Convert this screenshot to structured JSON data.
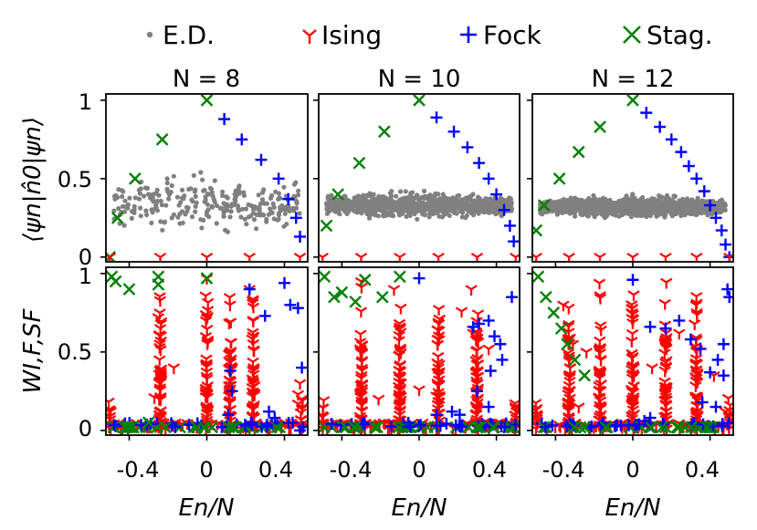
{
  "figure": {
    "legend": [
      {
        "label": "E.D.",
        "marker": "dot",
        "color": "#808080"
      },
      {
        "label": "Ising",
        "marker": "tri_down",
        "color": "#ff0000"
      },
      {
        "label": "Fock",
        "marker": "plus",
        "color": "#0000ff"
      },
      {
        "label": "Stag.",
        "marker": "x",
        "color": "#008000"
      }
    ],
    "column_titles": [
      "N = 8",
      "N = 10",
      "N = 12"
    ],
    "ylabel_top": "⟨ψn|n̂0|ψn⟩",
    "ylabel_bottom": "WI,F,SF",
    "xlabel": "En/N",
    "xtick_labels": [
      "-0.4",
      "0",
      "0.4"
    ],
    "ytick_labels": [
      "0",
      "0.5",
      "1"
    ]
  },
  "chart_data": [
    {
      "type": "scatter",
      "panel": "top",
      "title": "N = 8",
      "ylabel": "⟨ψn|n̂0|ψn⟩",
      "xlim": [
        -0.52,
        0.52
      ],
      "ylim": [
        -0.03,
        1.04
      ],
      "series": [
        {
          "name": "Stag.",
          "x": [
            -0.5,
            -0.46,
            -0.37,
            -0.23,
            0.0
          ],
          "y": [
            0.0,
            0.25,
            0.5,
            0.75,
            1.0
          ]
        },
        {
          "name": "Fock",
          "x": [
            0.09,
            0.18,
            0.28,
            0.37,
            0.42,
            0.46,
            0.48
          ],
          "y": [
            0.88,
            0.75,
            0.62,
            0.5,
            0.37,
            0.25,
            0.13
          ]
        },
        {
          "name": "Ising",
          "x": [
            -0.5,
            -0.24,
            0.0,
            0.22,
            0.48
          ],
          "y": [
            0.0,
            0.0,
            0.0,
            0.0,
            0.0
          ]
        },
        {
          "name": "E.D.",
          "cloud": {
            "n": 260,
            "x_range": [
              -0.48,
              0.48
            ],
            "y_center": 0.34,
            "y_spread": 0.3
          }
        }
      ]
    },
    {
      "type": "scatter",
      "panel": "top",
      "title": "N = 10",
      "xlim": [
        -0.52,
        0.52
      ],
      "ylim": [
        -0.03,
        1.04
      ],
      "series": [
        {
          "name": "Stag.",
          "x": [
            -0.48,
            -0.42,
            -0.31,
            -0.18,
            0.0
          ],
          "y": [
            0.2,
            0.4,
            0.6,
            0.8,
            1.0
          ]
        },
        {
          "name": "Fock",
          "x": [
            0.09,
            0.18,
            0.25,
            0.31,
            0.36,
            0.4,
            0.44,
            0.47,
            0.49
          ],
          "y": [
            0.89,
            0.8,
            0.7,
            0.6,
            0.5,
            0.4,
            0.3,
            0.2,
            0.1
          ]
        },
        {
          "name": "Ising",
          "x": [
            -0.5,
            -0.3,
            -0.1,
            0.1,
            0.3,
            0.5
          ],
          "y": [
            0.0,
            0.0,
            0.0,
            0.0,
            0.0,
            0.0
          ]
        },
        {
          "name": "E.D.",
          "cloud": {
            "n": 900,
            "x_range": [
              -0.48,
              0.48
            ],
            "y_center": 0.33,
            "y_spread": 0.13
          }
        }
      ]
    },
    {
      "type": "scatter",
      "panel": "top",
      "title": "N = 12",
      "xlim": [
        -0.52,
        0.52
      ],
      "ylim": [
        -0.03,
        1.04
      ],
      "series": [
        {
          "name": "Stag.",
          "x": [
            -0.5,
            -0.46,
            -0.38,
            -0.28,
            -0.17,
            0.0
          ],
          "y": [
            0.17,
            0.33,
            0.5,
            0.67,
            0.83,
            1.0
          ]
        },
        {
          "name": "Fock",
          "x": [
            0.07,
            0.14,
            0.2,
            0.25,
            0.29,
            0.33,
            0.37,
            0.4,
            0.43,
            0.46,
            0.48,
            0.5
          ],
          "y": [
            0.92,
            0.83,
            0.75,
            0.67,
            0.58,
            0.5,
            0.42,
            0.33,
            0.25,
            0.17,
            0.08,
            0.0
          ]
        },
        {
          "name": "Ising",
          "x": [
            -0.5,
            -0.33,
            -0.17,
            0.0,
            0.17,
            0.33,
            0.5
          ],
          "y": [
            0.0,
            0.0,
            0.0,
            0.0,
            0.0,
            0.0,
            0.0
          ]
        },
        {
          "name": "E.D.",
          "cloud": {
            "n": 1400,
            "x_range": [
              -0.48,
              0.48
            ],
            "y_center": 0.32,
            "y_spread": 0.1
          }
        }
      ]
    },
    {
      "type": "scatter",
      "panel": "bottom",
      "ylabel": "WI,F,SF",
      "xlabel": "En/N",
      "xlim": [
        -0.52,
        0.52
      ],
      "ylim": [
        -0.03,
        1.04
      ],
      "series": [
        {
          "name": "Stag.",
          "x": [
            -0.49,
            -0.47,
            -0.4,
            -0.25,
            -0.25,
            0.0,
            -0.3
          ],
          "y": [
            0.98,
            0.95,
            0.9,
            0.98,
            0.93,
            0.97,
            0.05
          ]
        },
        {
          "name": "Fock",
          "x": [
            0.22,
            0.3,
            0.4,
            0.43,
            0.47,
            0.49,
            0.12,
            0.13,
            0.35,
            0.32,
            0.23,
            0.11,
            0.48
          ],
          "y": [
            0.9,
            0.73,
            0.94,
            0.8,
            0.78,
            0.4,
            0.38,
            0.25,
            0.08,
            0.12,
            0.05,
            0.1,
            0.0
          ]
        },
        {
          "name": "Ising",
          "columns": [
            -0.5,
            -0.24,
            0.0,
            0.12,
            0.24,
            0.49
          ],
          "extra_x": [
            -0.25,
            -0.27,
            -0.17,
            0.0,
            0.13,
            0.22,
            0.47,
            0.47,
            0.48
          ],
          "extra_y": [
            0.72,
            0.21,
            0.4,
            0.97,
            0.4,
            0.9,
            0.23,
            0.17,
            0.3
          ]
        }
      ]
    },
    {
      "type": "scatter",
      "panel": "bottom",
      "xlabel": "En/N",
      "xlim": [
        -0.52,
        0.52
      ],
      "ylim": [
        -0.03,
        1.04
      ],
      "series": [
        {
          "name": "Stag.",
          "x": [
            -0.49,
            -0.44,
            -0.4,
            -0.33,
            -0.19,
            -0.28,
            -0.1
          ],
          "y": [
            0.98,
            0.85,
            0.88,
            0.82,
            0.85,
            0.96,
            0.98
          ]
        },
        {
          "name": "Fock",
          "x": [
            0.0,
            0.28,
            0.31,
            0.36,
            0.39,
            0.42,
            0.48,
            0.43,
            0.37,
            0.3,
            0.17,
            0.09,
            0.21,
            0.11,
            0.36
          ],
          "y": [
            0.97,
            0.66,
            0.68,
            0.7,
            0.6,
            0.55,
            0.85,
            0.45,
            0.38,
            0.25,
            0.12,
            0.1,
            0.1,
            0.03,
            0.15
          ]
        },
        {
          "name": "Ising",
          "columns": [
            -0.5,
            -0.3,
            -0.1,
            0.1,
            0.3,
            0.5
          ],
          "extra_x": [
            -0.21,
            -0.3,
            -0.13,
            0.0,
            0.22,
            0.27,
            0.28,
            0.36,
            0.09
          ],
          "extra_y": [
            0.2,
            0.95,
            0.9,
            0.26,
            0.76,
            0.9,
            0.62,
            0.52,
            0.22
          ]
        }
      ]
    },
    {
      "type": "scatter",
      "panel": "bottom",
      "xlabel": "En/N",
      "xlim": [
        -0.52,
        0.52
      ],
      "ylim": [
        -0.03,
        1.04
      ],
      "series": [
        {
          "name": "Stag.",
          "x": [
            -0.49,
            -0.45,
            -0.41,
            -0.37,
            -0.34,
            -0.3,
            -0.25
          ],
          "y": [
            0.98,
            0.85,
            0.75,
            0.65,
            0.55,
            0.45,
            0.35
          ]
        },
        {
          "name": "Fock",
          "x": [
            0.0,
            0.09,
            0.17,
            0.24,
            0.3,
            0.35,
            0.4,
            0.44,
            0.47,
            0.5,
            0.49,
            0.47,
            0.36,
            0.43,
            0.09,
            0.06
          ],
          "y": [
            0.96,
            0.66,
            0.65,
            0.7,
            0.58,
            0.52,
            0.37,
            0.45,
            0.55,
            0.85,
            0.9,
            0.35,
            0.18,
            0.15,
            0.08,
            0.06
          ]
        },
        {
          "name": "Ising",
          "columns": [
            -0.5,
            -0.33,
            -0.17,
            0.0,
            0.17,
            0.33,
            0.5
          ],
          "extra_x": [
            -0.36,
            -0.31,
            -0.24,
            -0.28,
            0.24,
            0.32,
            0.42,
            0.48,
            0.1
          ],
          "extra_y": [
            0.8,
            0.55,
            0.5,
            0.15,
            0.62,
            0.68,
            0.35,
            0.12,
            0.4
          ]
        }
      ]
    }
  ]
}
